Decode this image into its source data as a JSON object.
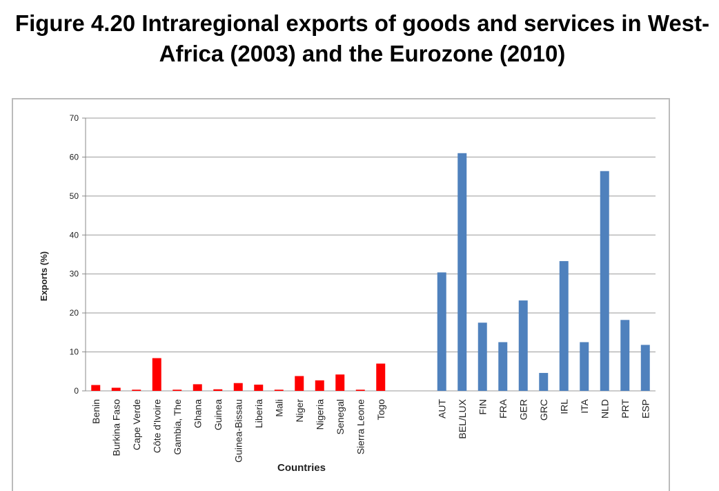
{
  "chart_data": {
    "type": "bar",
    "title": "Figure 4.20 Intraregional exports of goods and services in West-Africa (2003) and the Eurozone (2010)",
    "xlabel": "Countries",
    "ylabel": "Exports (%)",
    "categories": [
      "Benin",
      "Burkina Faso",
      "Cape Verde",
      "Côte d'Ivoire",
      "Gambia, The",
      "Ghana",
      "Guinea",
      "Guinea-Bissau",
      "Liberia",
      "Mali",
      "Niger",
      "Nigeria",
      "Senegal",
      "Sierra Leone",
      "Togo",
      null,
      null,
      "AUT",
      "BEL/LUX",
      "FIN",
      "FRA",
      "GER",
      "GRC",
      "IRL",
      "ITA",
      "NLD",
      "PRT",
      "ESP"
    ],
    "values": [
      1.5,
      0.8,
      0.3,
      8.4,
      0.3,
      1.7,
      0.4,
      2.0,
      1.6,
      0.3,
      3.8,
      2.7,
      4.2,
      0.3,
      7.0,
      null,
      null,
      30.4,
      61,
      17.5,
      12.5,
      23.2,
      4.6,
      33.3,
      12.5,
      56.4,
      18.2,
      11.8
    ],
    "colors": [
      "#ff0000",
      "#ff0000",
      "#ff0000",
      "#ff0000",
      "#ff0000",
      "#ff0000",
      "#ff0000",
      "#ff0000",
      "#ff0000",
      "#ff0000",
      "#ff0000",
      "#ff0000",
      "#ff0000",
      "#ff0000",
      "#ff0000",
      null,
      null,
      "#4f81bd",
      "#4f81bd",
      "#4f81bd",
      "#4f81bd",
      "#4f81bd",
      "#4f81bd",
      "#4f81bd",
      "#4f81bd",
      "#4f81bd",
      "#4f81bd",
      "#4f81bd"
    ],
    "ylim": [
      0,
      70
    ],
    "yticks": [
      0,
      10,
      20,
      30,
      40,
      50,
      60,
      70
    ],
    "grid": true
  }
}
